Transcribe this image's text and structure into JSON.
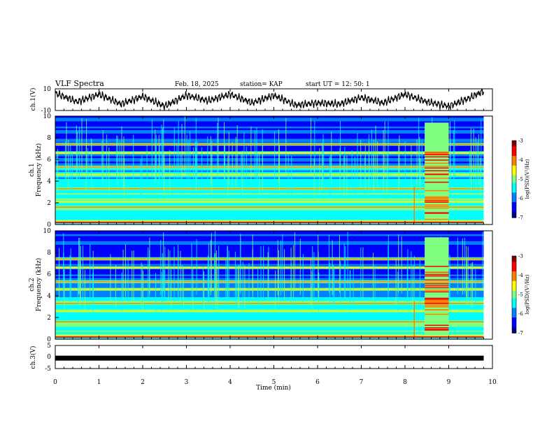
{
  "header": {
    "title": "VLF Spectra",
    "date": "Feb. 18, 2025",
    "station": "station= KAP",
    "start": "start  UT =   12: 50: 1"
  },
  "chart_data": [
    {
      "type": "line",
      "panel": "ch1-waveform",
      "ylabel": "ch.1(V)",
      "ylim": [
        -10,
        10
      ],
      "yticks": [
        "10",
        "-10"
      ],
      "xlim": [
        0,
        10
      ],
      "x": [
        0.0,
        0.5,
        1.0,
        1.5,
        2.0,
        2.5,
        3.0,
        3.5,
        4.0,
        4.5,
        5.0,
        5.5,
        6.0,
        6.5,
        7.0,
        7.5,
        8.0,
        8.5,
        9.0,
        9.5,
        9.8
      ],
      "values": [
        6,
        -2,
        5,
        -4,
        3,
        -6,
        4,
        -1,
        5,
        -3,
        4,
        -5,
        -3,
        -4,
        2,
        -3,
        5,
        -2,
        -6,
        2,
        8
      ]
    },
    {
      "type": "heatmap",
      "panel": "ch1-spectrogram",
      "ylabel": "ch.1\nFrequency (kHz)",
      "ylim": [
        0,
        10
      ],
      "yticks": [
        "0",
        "2",
        "4",
        "6",
        "8",
        "10"
      ],
      "xlim": [
        0,
        10
      ],
      "colorbar": {
        "label": "log(PSD)(V²/Hz)",
        "ticks": [
          "-3",
          "-4",
          "-5",
          "-6",
          "-7"
        ],
        "range": [
          -7,
          -3
        ]
      },
      "features": {
        "strong_band_kHz": [
          0.3,
          1.6,
          2.1,
          3.3,
          4.6,
          5.3,
          6.6,
          7.4
        ],
        "burst_min": [
          8.45,
          9.0
        ],
        "spike_min": 8.2
      }
    },
    {
      "type": "heatmap",
      "panel": "ch2-spectrogram",
      "ylabel": "ch.2\nFrequency (kHz)",
      "ylim": [
        0,
        10
      ],
      "yticks": [
        "0",
        "2",
        "4",
        "6",
        "8",
        "10"
      ],
      "xlim": [
        0,
        10
      ],
      "colorbar": {
        "label": "log(PSD)(V²/Hz)",
        "ticks": [
          "-3",
          "-4",
          "-5",
          "-6",
          "-7"
        ],
        "range": [
          -7,
          -3
        ]
      },
      "features": {
        "strong_band_kHz": [
          0.3,
          1.6,
          2.6,
          3.3,
          4.6,
          5.3,
          6.6,
          7.4
        ],
        "burst_min": [
          8.45,
          9.0
        ],
        "spike_min": 8.2
      }
    },
    {
      "type": "line",
      "panel": "ch3-waveform",
      "ylabel": "ch.3(V)",
      "ylim": [
        -5,
        5
      ],
      "yticks": [
        "5",
        "0",
        "-5"
      ],
      "xlim": [
        0,
        10
      ],
      "x": [
        0,
        9.8
      ],
      "values": [
        -0.5,
        -0.5
      ]
    }
  ],
  "xaxis": {
    "label": "Time (min)",
    "ticks": [
      "0",
      "1",
      "2",
      "3",
      "4",
      "5",
      "6",
      "7",
      "8",
      "9",
      "10"
    ]
  },
  "colors": {
    "spectral": [
      "#00008f",
      "#0000ff",
      "#0080ff",
      "#00ffff",
      "#80ff80",
      "#ffff00",
      "#ff8000",
      "#ff0000",
      "#800000"
    ]
  }
}
